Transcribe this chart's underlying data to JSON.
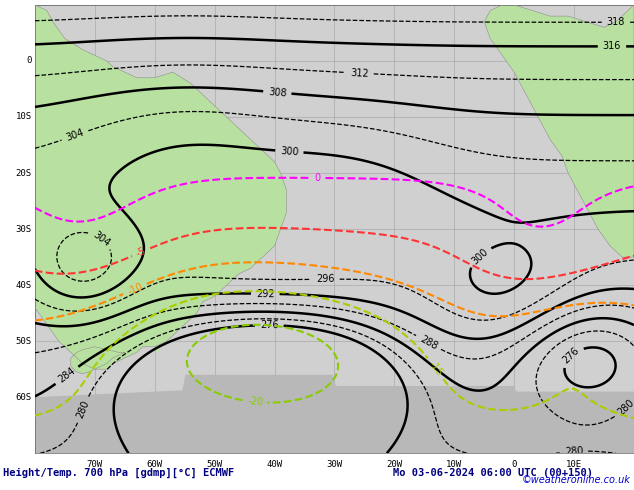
{
  "title_left": "Height/Temp. 700 hPa [gdmp][°C] ECMWF",
  "title_right": "Mo 03-06-2024 06:00 UTC (00+150)",
  "copyright": "©weatheronline.co.uk",
  "bg_ocean": "#d0d0d0",
  "bg_land": "#b8e0a0",
  "bg_land_border": "#909090",
  "grid_color": "#a0a0a0",
  "font_color_title": "#000080",
  "font_color_copy": "#0000cc",
  "figsize": [
    6.34,
    4.9
  ],
  "dpi": 100,
  "xlim": [
    -80,
    20
  ],
  "ylim": [
    -70,
    10
  ],
  "xlabel_vals": [
    "70W",
    "60W",
    "50W",
    "40W",
    "30W",
    "20W",
    "10W",
    "0",
    "10E"
  ],
  "ylabel_vals": [
    "60S",
    "50S",
    "40S",
    "30S",
    "20S",
    "10S",
    "0"
  ],
  "temp_zero_color": "#ff00ff",
  "temp_neg5_color": "#ff3333",
  "temp_neg10_color": "#ff8800",
  "temp_neg15_color": "#aacc00",
  "temp_neg20_color": "#88cc00"
}
